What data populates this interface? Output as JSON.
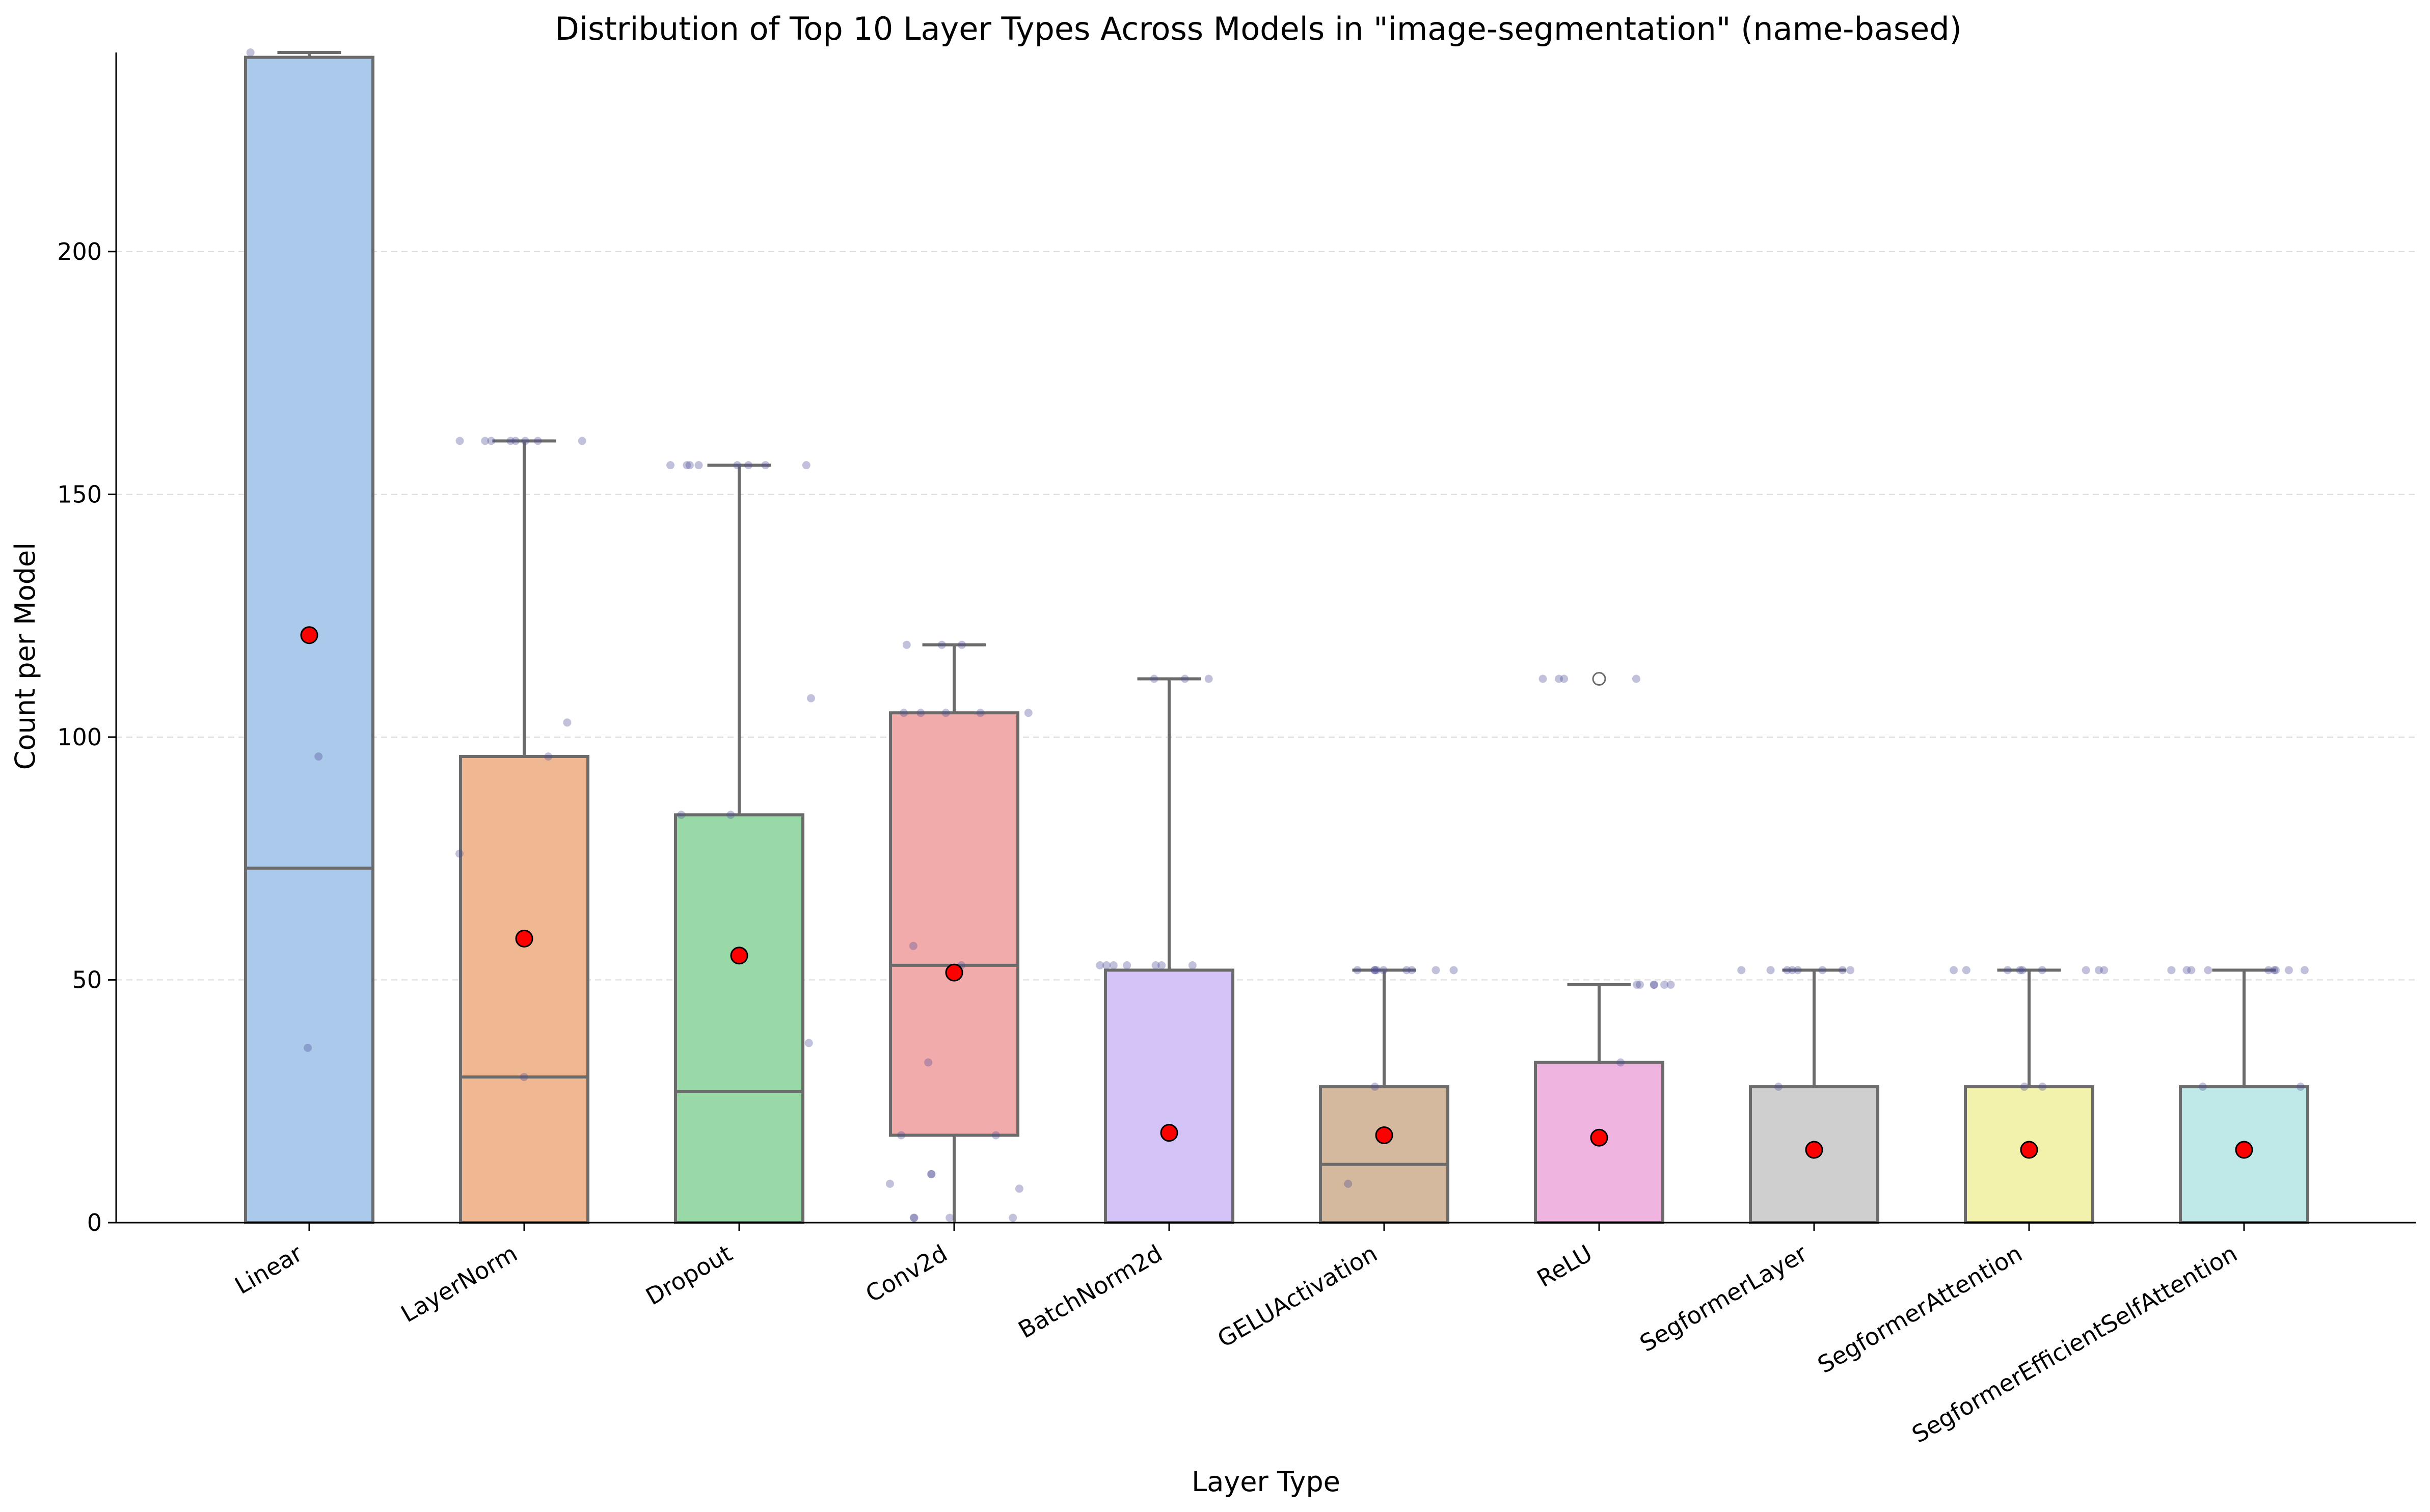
{
  "chart_data": {
    "type": "box",
    "title": "Distribution of Top 10 Layer Types Across Models in \"image-segmentation\" (name-based)",
    "xlabel": "Layer Type",
    "ylabel": "Count per Model",
    "ylim": [
      0,
      241
    ],
    "yticks": [
      0,
      50,
      100,
      150,
      200
    ],
    "grid": "horizontal dashed",
    "categories": [
      "Linear",
      "LayerNorm",
      "Dropout",
      "Conv2d",
      "BatchNorm2d",
      "GELUActivation",
      "ReLU",
      "SegformerLayer",
      "SegformerAttention",
      "SegformerEfficientSelfAttention"
    ],
    "series": [
      {
        "category": "Linear",
        "color": "#abc9ea",
        "whisker_low": 0,
        "q1": 0,
        "median": 73,
        "q3": 240,
        "whisker_high": 241,
        "mean": 121,
        "points": [
          36,
          96,
          241
        ]
      },
      {
        "category": "LayerNorm",
        "color": "#efb792",
        "whisker_low": 0,
        "q1": 0,
        "median": 30,
        "q3": 96,
        "whisker_high": 161,
        "mean": 58.5,
        "points": [
          161,
          161,
          161,
          161,
          161,
          161,
          161,
          161,
          103,
          96,
          76,
          30
        ]
      },
      {
        "category": "Dropout",
        "color": "#98d9a7",
        "whisker_low": 0,
        "q1": 0,
        "median": 27,
        "q3": 84,
        "whisker_high": 156,
        "mean": 55,
        "points": [
          156,
          156,
          156,
          156,
          156,
          156,
          156,
          156,
          108,
          84,
          84,
          37
        ]
      },
      {
        "category": "Conv2d",
        "color": "#f2abab",
        "whisker_low": 0,
        "q1": 18,
        "median": 53,
        "q3": 105,
        "whisker_high": 119,
        "mean": 51.5,
        "points": [
          119,
          119,
          119,
          105,
          105,
          105,
          105,
          105,
          57,
          53,
          33,
          18,
          18,
          10,
          10,
          8,
          7,
          1,
          1,
          1,
          1
        ]
      },
      {
        "category": "BatchNorm2d",
        "color": "#d3c3f7",
        "whisker_low": 0,
        "q1": 0,
        "median": 0,
        "q3": 52,
        "whisker_high": 112,
        "mean": 18.5,
        "points": [
          112,
          112,
          112,
          53,
          53,
          53,
          53,
          53,
          53,
          53
        ]
      },
      {
        "category": "GELUActivation",
        "color": "#d5b99e",
        "whisker_low": 0,
        "q1": 0,
        "median": 12,
        "q3": 28,
        "whisker_high": 52,
        "mean": 18,
        "points": [
          52,
          52,
          52,
          52,
          52,
          52,
          52,
          52,
          52,
          28,
          8
        ]
      },
      {
        "category": "ReLU",
        "color": "#f0b4e0",
        "whisker_low": 0,
        "q1": 0,
        "median": 0,
        "q3": 33,
        "whisker_high": 49,
        "mean": 17.5,
        "points": [
          112,
          112,
          112,
          112,
          49,
          49,
          49,
          49,
          49,
          49,
          33
        ]
      },
      {
        "category": "SegformerLayer",
        "color": "#cfcfcf",
        "whisker_low": 0,
        "q1": 0,
        "median": 0,
        "q3": 28,
        "whisker_high": 52,
        "mean": 15,
        "points": [
          52,
          52,
          52,
          52,
          52,
          52,
          52,
          52,
          28
        ]
      },
      {
        "category": "SegformerAttention",
        "color": "#f2f2ac",
        "whisker_low": 0,
        "q1": 0,
        "median": 0,
        "q3": 28,
        "whisker_high": 52,
        "mean": 15,
        "points": [
          52,
          52,
          52,
          52,
          52,
          52,
          52,
          52,
          52,
          28,
          28
        ]
      },
      {
        "category": "SegformerEfficientSelfAttention",
        "color": "#bfe9e9",
        "whisker_low": 0,
        "q1": 0,
        "median": 0,
        "q3": 28,
        "whisker_high": 52,
        "mean": 15,
        "points": [
          52,
          52,
          52,
          52,
          52,
          52,
          52,
          52,
          52,
          28,
          28
        ]
      }
    ],
    "fliers": [
      {
        "category": "ReLU",
        "value": 112
      }
    ]
  }
}
